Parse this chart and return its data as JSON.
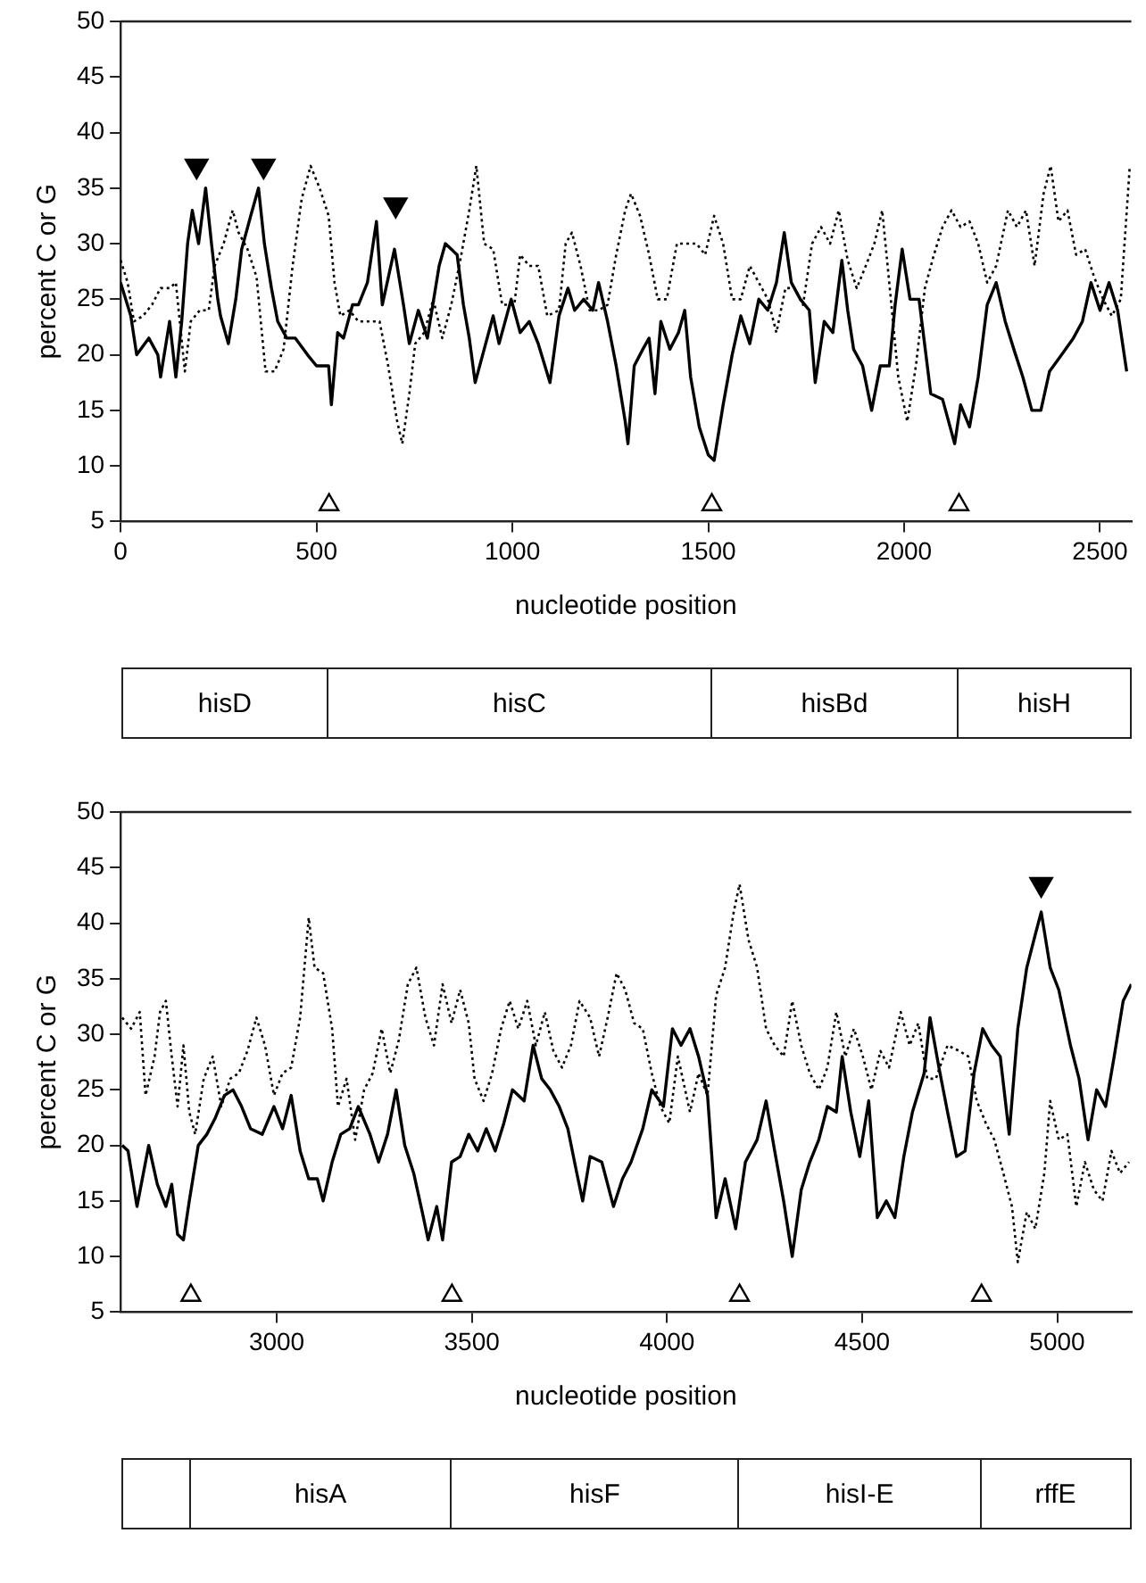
{
  "chart_data": [
    {
      "type": "line",
      "xlabel": "nucleotide position",
      "ylabel": "percent C or G",
      "xlim": [
        0,
        2580
      ],
      "xticks": [
        0,
        500,
        1000,
        1500,
        2000,
        2500
      ],
      "ylim": [
        5,
        50
      ],
      "yticks": [
        5,
        10,
        15,
        20,
        25,
        30,
        35,
        40,
        45,
        50
      ],
      "legend": false,
      "marker": "none",
      "series": [
        {
          "color": "#000000",
          "line_style": "solid",
          "x": [
            0,
            26,
            41,
            72,
            95,
            102,
            125,
            141,
            156,
            171,
            183,
            199,
            217,
            232,
            248,
            255,
            275,
            294,
            309,
            332,
            352,
            367,
            385,
            401,
            424,
            446,
            477,
            500,
            531,
            538,
            554,
            569,
            592,
            607,
            630,
            653,
            668,
            699,
            722,
            737,
            760,
            783,
            813,
            829,
            859,
            875,
            890,
            905,
            928,
            951,
            966,
            997,
            1020,
            1043,
            1066,
            1096,
            1119,
            1142,
            1159,
            1182,
            1205,
            1220,
            1243,
            1265,
            1288,
            1295,
            1311,
            1333,
            1349,
            1364,
            1379,
            1402,
            1424,
            1440,
            1455,
            1477,
            1500,
            1515,
            1538,
            1561,
            1583,
            1606,
            1629,
            1652,
            1674,
            1694,
            1712,
            1735,
            1758,
            1773,
            1796,
            1818,
            1841,
            1856,
            1871,
            1894,
            1917,
            1939,
            1962,
            1977,
            1995,
            2015,
            2038,
            2068,
            2098,
            2129,
            2144,
            2167,
            2189,
            2212,
            2235,
            2258,
            2280,
            2303,
            2326,
            2349,
            2371,
            2402,
            2432,
            2455,
            2477,
            2500,
            2523,
            2545,
            2568
          ],
          "values": [
            26.5,
            23.5,
            20,
            21.5,
            20,
            18,
            23,
            18,
            23,
            30,
            33,
            30,
            35,
            30,
            25,
            23.5,
            21,
            25,
            29.5,
            32.5,
            35,
            30,
            26,
            23,
            21.5,
            21.5,
            20,
            19,
            19,
            15.5,
            22,
            21.5,
            24.5,
            24.5,
            26.5,
            32,
            24.5,
            29.5,
            24.5,
            21,
            24,
            21.5,
            28,
            30,
            29,
            24.5,
            21.5,
            17.5,
            20.5,
            23.5,
            21,
            25,
            22,
            23,
            21,
            17.5,
            23.5,
            26,
            24,
            25,
            24,
            26.5,
            23,
            19,
            14,
            12,
            19,
            20.5,
            21.5,
            16.5,
            23,
            20.5,
            22,
            24,
            18,
            13.5,
            11,
            10.5,
            15.5,
            20,
            23.5,
            21,
            25,
            24,
            26.5,
            31,
            26.5,
            25,
            24,
            17.5,
            23,
            22,
            28.5,
            24,
            20.5,
            19,
            15,
            19,
            19,
            24.5,
            29.5,
            25,
            25,
            16.5,
            16,
            12,
            15.5,
            13.5,
            18,
            24.5,
            26.5,
            23,
            20.5,
            18,
            15,
            15,
            18.5,
            20,
            21.5,
            23,
            26.5,
            24,
            26.5,
            24,
            18.5
          ]
        },
        {
          "color": "#000000",
          "line_style": "dotted",
          "x": [
            0,
            18,
            34,
            57,
            80,
            102,
            125,
            141,
            164,
            179,
            202,
            225,
            240,
            263,
            286,
            301,
            324,
            347,
            370,
            393,
            416,
            439,
            462,
            485,
            508,
            531,
            546,
            561,
            584,
            607,
            630,
            661,
            683,
            706,
            719,
            737,
            752,
            775,
            798,
            821,
            844,
            867,
            890,
            908,
            928,
            951,
            974,
            1005,
            1020,
            1043,
            1066,
            1089,
            1119,
            1136,
            1152,
            1174,
            1197,
            1220,
            1243,
            1265,
            1288,
            1303,
            1326,
            1349,
            1371,
            1394,
            1420,
            1447,
            1470,
            1492,
            1515,
            1538,
            1561,
            1583,
            1606,
            1629,
            1652,
            1674,
            1697,
            1720,
            1742,
            1765,
            1788,
            1811,
            1833,
            1856,
            1879,
            1902,
            1924,
            1944,
            1962,
            1985,
            2008,
            2030,
            2053,
            2076,
            2098,
            2121,
            2144,
            2167,
            2189,
            2212,
            2235,
            2265,
            2288,
            2311,
            2333,
            2356,
            2374,
            2394,
            2417,
            2439,
            2462,
            2485,
            2508,
            2530,
            2553,
            2576
          ],
          "values": [
            28.5,
            26.5,
            23,
            23.5,
            24.5,
            26,
            26,
            26.5,
            18.5,
            23,
            24,
            24,
            28,
            30,
            33,
            31,
            29.5,
            27,
            18.5,
            18.5,
            20.5,
            28,
            34,
            37,
            35,
            32.5,
            26.5,
            23.5,
            24,
            23,
            23,
            23,
            19,
            14,
            12,
            16.5,
            21,
            22,
            25,
            21.5,
            24.5,
            28.5,
            33,
            37,
            30,
            29.5,
            24.5,
            24.5,
            29,
            28,
            28,
            23.5,
            24,
            30,
            31,
            28,
            24,
            24,
            24.5,
            29,
            33,
            34.5,
            32.5,
            29,
            25,
            25,
            30,
            30,
            30,
            29,
            32.5,
            30,
            25,
            25,
            28,
            26.5,
            25,
            22,
            26,
            26,
            24.5,
            30,
            31.5,
            30,
            33,
            28.5,
            26,
            28,
            30,
            33,
            26.5,
            18,
            14,
            19,
            26,
            29,
            31.5,
            33,
            31.5,
            32,
            30,
            26.5,
            28,
            33,
            31.5,
            33,
            28,
            34.5,
            37,
            32,
            33,
            29,
            29.5,
            27,
            25,
            23.5,
            25,
            37
          ]
        },
        {
          "type": "scatter",
          "color": "#ffffff",
          "marker": "triangle",
          "x": [
            532,
            1509,
            2140
          ],
          "values": [
            6.5,
            6.5,
            6.5
          ]
        },
        {
          "type": "scatter",
          "color": "#000000",
          "marker": "triangle",
          "x": [
            194,
            365,
            702
          ],
          "values": [
            37,
            37,
            33.5
          ]
        }
      ],
      "annotations": [
        "hisD",
        "hisC",
        "hisBd",
        "hisH"
      ]
    },
    {
      "type": "line",
      "xlabel": "nucleotide position",
      "ylabel": "percent C or G",
      "xlim": [
        2600,
        5190
      ],
      "xticks": [
        3000,
        3500,
        4000,
        4500,
        5000
      ],
      "ylim": [
        5,
        50
      ],
      "yticks": [
        5,
        10,
        15,
        20,
        25,
        30,
        35,
        40,
        45,
        50
      ],
      "legend": false,
      "marker": "none",
      "series": [
        {
          "color": "#000000",
          "line_style": "solid",
          "x": [
            2604,
            2619,
            2642,
            2672,
            2694,
            2716,
            2731,
            2746,
            2761,
            2776,
            2799,
            2821,
            2843,
            2866,
            2888,
            2910,
            2933,
            2963,
            2993,
            3015,
            3037,
            3060,
            3082,
            3104,
            3119,
            3142,
            3164,
            3187,
            3209,
            3239,
            3261,
            3284,
            3306,
            3328,
            3351,
            3373,
            3388,
            3410,
            3425,
            3448,
            3470,
            3492,
            3515,
            3537,
            3560,
            3582,
            3604,
            3634,
            3657,
            3679,
            3701,
            3724,
            3746,
            3769,
            3784,
            3803,
            3833,
            3863,
            3886,
            3908,
            3938,
            3961,
            3991,
            4014,
            4036,
            4059,
            4081,
            4104,
            4126,
            4149,
            4176,
            4201,
            4231,
            4254,
            4276,
            4299,
            4321,
            4344,
            4366,
            4389,
            4411,
            4434,
            4449,
            4471,
            4494,
            4517,
            4539,
            4562,
            4584,
            4607,
            4629,
            4659,
            4674,
            4697,
            4719,
            4742,
            4764,
            4787,
            4809,
            4832,
            4854,
            4877,
            4899,
            4922,
            4944,
            4959,
            4982,
            5004,
            5034,
            5056,
            5079,
            5101,
            5124,
            5146,
            5169,
            5190
          ],
          "values": [
            20,
            19.5,
            14.5,
            20,
            16.5,
            14.5,
            16.5,
            12,
            11.5,
            15,
            20,
            21,
            22.5,
            24.5,
            25,
            23.5,
            21.5,
            21,
            23.5,
            21.5,
            24.5,
            19.5,
            17,
            17,
            15,
            18.5,
            21,
            21.5,
            23.5,
            21,
            18.5,
            21,
            25,
            20,
            17.5,
            14,
            11.5,
            14.5,
            11.5,
            18.5,
            19,
            21,
            19.5,
            21.5,
            19.5,
            22,
            25,
            24,
            29,
            26,
            25,
            23.5,
            21.5,
            17.5,
            15,
            19,
            18.5,
            14.5,
            17,
            18.5,
            21.5,
            25,
            23.5,
            30.5,
            29,
            30.5,
            28,
            24.5,
            13.5,
            17,
            12.5,
            18.5,
            20.5,
            24,
            19.5,
            15,
            10,
            16,
            18.5,
            20.5,
            23.5,
            23,
            28,
            23,
            19,
            24,
            13.5,
            15,
            13.5,
            19,
            23,
            26.5,
            31.5,
            27,
            23,
            19,
            19.5,
            26.5,
            30.5,
            29,
            28,
            21,
            30.5,
            36,
            39,
            41,
            36,
            34,
            29,
            26,
            20.5,
            25,
            23.5,
            28,
            33,
            34.5
          ]
        },
        {
          "color": "#000000",
          "line_style": "dotted",
          "x": [
            2604,
            2627,
            2649,
            2664,
            2687,
            2701,
            2716,
            2731,
            2746,
            2761,
            2776,
            2791,
            2813,
            2836,
            2858,
            2881,
            2903,
            2925,
            2948,
            2970,
            2993,
            3015,
            3037,
            3060,
            3082,
            3097,
            3119,
            3142,
            3157,
            3179,
            3201,
            3224,
            3246,
            3269,
            3291,
            3313,
            3336,
            3358,
            3381,
            3403,
            3425,
            3448,
            3470,
            3492,
            3507,
            3530,
            3552,
            3575,
            3597,
            3619,
            3642,
            3664,
            3687,
            3709,
            3731,
            3754,
            3776,
            3803,
            3826,
            3848,
            3871,
            3893,
            3916,
            3938,
            3961,
            3983,
            4006,
            4028,
            4059,
            4081,
            4104,
            4126,
            4149,
            4171,
            4186,
            4209,
            4231,
            4254,
            4276,
            4299,
            4321,
            4344,
            4366,
            4389,
            4411,
            4434,
            4457,
            4479,
            4502,
            4524,
            4547,
            4569,
            4599,
            4622,
            4644,
            4667,
            4689,
            4719,
            4749,
            4772,
            4794,
            4817,
            4839,
            4862,
            4884,
            4899,
            4922,
            4944,
            4967,
            4982,
            5004,
            5026,
            5049,
            5071,
            5094,
            5116,
            5139,
            5161,
            5184
          ],
          "values": [
            31.5,
            30.5,
            32,
            24.5,
            28,
            32,
            33,
            28,
            23.5,
            29,
            23,
            21,
            26,
            28,
            23.5,
            26,
            26.5,
            28.5,
            31.5,
            29,
            24.5,
            26.5,
            27,
            31.5,
            40.5,
            36,
            35.5,
            30.5,
            23.5,
            26,
            20.5,
            25,
            26.5,
            30.5,
            26.5,
            29.5,
            34.5,
            36,
            31.5,
            29,
            34.5,
            31,
            34,
            31,
            26,
            24,
            26.5,
            30.5,
            33,
            30.5,
            33,
            29,
            32,
            28.5,
            27,
            29,
            33,
            31.5,
            28,
            31.5,
            35.5,
            34,
            31,
            30.5,
            26.5,
            23.5,
            22,
            28,
            23,
            26.5,
            24.5,
            33.5,
            36,
            41,
            43.5,
            38.5,
            36,
            30.5,
            29,
            28,
            33,
            29,
            26.5,
            25,
            27,
            32,
            28,
            30.5,
            28,
            25,
            28.5,
            27,
            32,
            29,
            31,
            26,
            26,
            29,
            28.5,
            28,
            24,
            22,
            20.5,
            17.5,
            14.5,
            9.5,
            14,
            12.5,
            17.5,
            24,
            20.5,
            21,
            14.5,
            18.5,
            16,
            15,
            19.5,
            17.5,
            18.5
          ]
        },
        {
          "type": "scatter",
          "color": "#ffffff",
          "marker": "triangle",
          "x": [
            2780,
            3449,
            4186,
            4806
          ],
          "values": [
            6.5,
            6.5,
            6.5,
            6.5
          ]
        },
        {
          "type": "scatter",
          "color": "#000000",
          "marker": "triangle",
          "x": [
            4959
          ],
          "values": [
            43.5
          ]
        }
      ],
      "annotations": [
        "hisA",
        "hisF",
        "hisI-E",
        "rffE"
      ]
    }
  ]
}
